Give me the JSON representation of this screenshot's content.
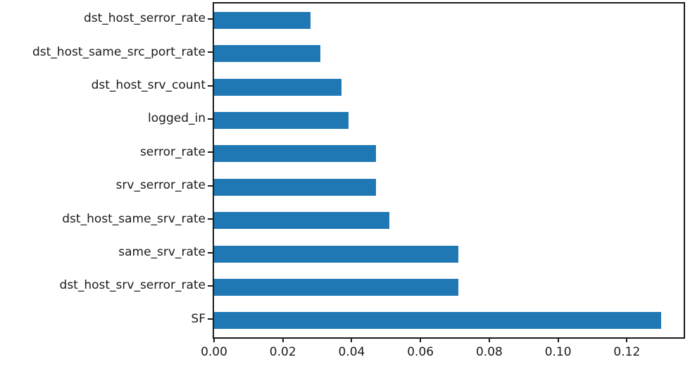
{
  "chart_data": {
    "type": "bar",
    "orientation": "horizontal",
    "title": "",
    "xlabel": "",
    "ylabel": "",
    "categories": [
      "dst_host_serror_rate",
      "dst_host_same_src_port_rate",
      "dst_host_srv_count",
      "logged_in",
      "serror_rate",
      "srv_serror_rate",
      "dst_host_same_srv_rate",
      "same_srv_rate",
      "dst_host_srv_serror_rate",
      "SF"
    ],
    "values": [
      0.028,
      0.031,
      0.037,
      0.039,
      0.047,
      0.047,
      0.051,
      0.071,
      0.071,
      0.13
    ],
    "xticks": [
      0.0,
      0.02,
      0.04,
      0.06,
      0.08,
      0.1,
      0.12
    ],
    "xtick_labels": [
      "0.00",
      "0.02",
      "0.04",
      "0.06",
      "0.08",
      "0.10",
      "0.12"
    ],
    "xlim": [
      0,
      0.1365
    ],
    "grid": false,
    "legend": null,
    "bar_color": "#1f77b4",
    "axis_color": "#1a1a1a",
    "background_color": "#ffffff"
  }
}
